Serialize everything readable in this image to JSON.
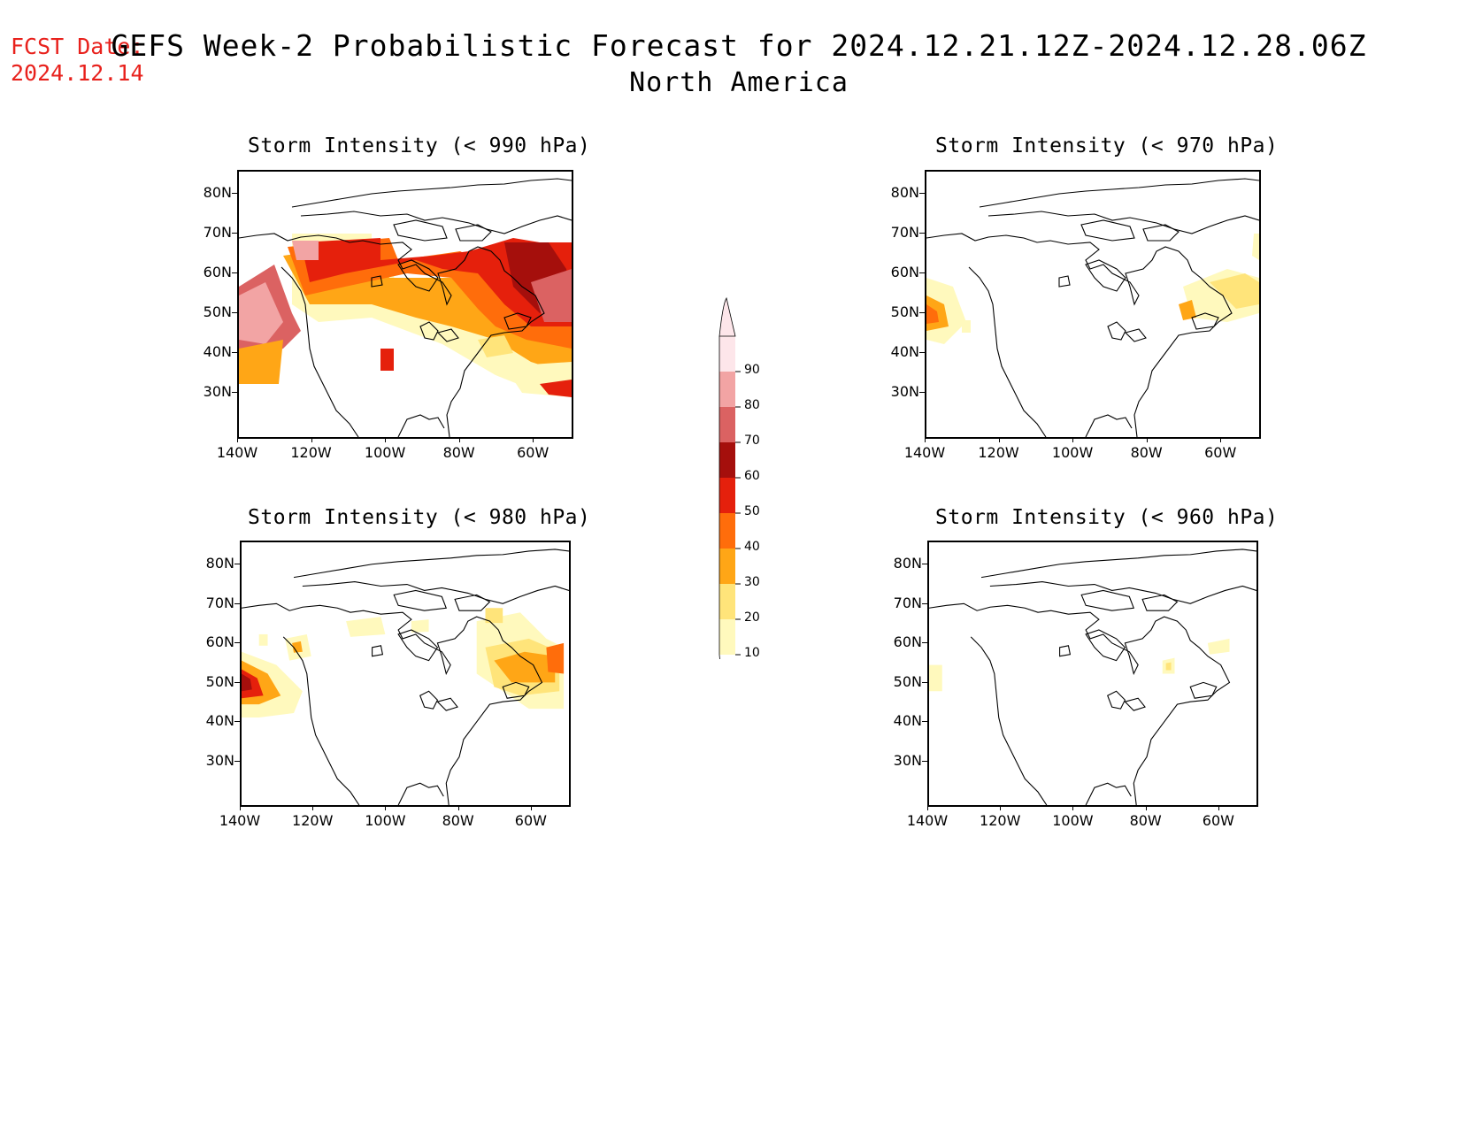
{
  "header": {
    "fcst_date_label": "FCST Date:",
    "fcst_date_value": "2024.12.14",
    "title": "GEFS Week-2 Probabilistic Forecast for 2024.12.21.12Z-2024.12.28.06Z",
    "subtitle": "North America"
  },
  "axes": {
    "lat_labels": [
      "80N",
      "70N",
      "60N",
      "50N",
      "40N",
      "30N"
    ],
    "lon_labels": [
      "140W",
      "120W",
      "100W",
      "80W",
      "60W"
    ]
  },
  "panels": [
    {
      "id": "p990",
      "title": "Storm Intensity (< 990 hPa)"
    },
    {
      "id": "p970",
      "title": "Storm Intensity (< 970 hPa)"
    },
    {
      "id": "p980",
      "title": "Storm Intensity (< 980 hPa)"
    },
    {
      "id": "p960",
      "title": "Storm Intensity (< 960 hPa)"
    }
  ],
  "colorbar": {
    "levels": [
      "10",
      "20",
      "30",
      "40",
      "50",
      "60",
      "70",
      "80",
      "90"
    ],
    "colors": [
      "#fff9bd",
      "#ffe47a",
      "#ffa616",
      "#ff6d0b",
      "#e5200c",
      "#a50f0c",
      "#db6262",
      "#f2a4a4",
      "#fde6ea"
    ]
  }
}
